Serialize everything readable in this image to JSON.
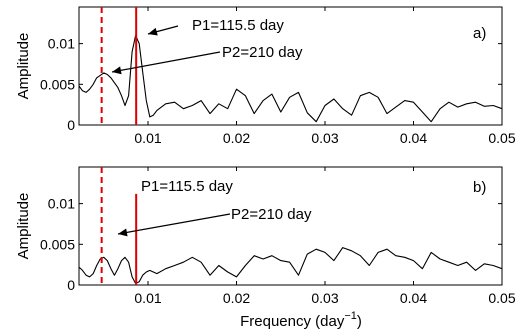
{
  "colors": {
    "curve": "#000000",
    "marker": "#e00000",
    "axis": "#000000"
  },
  "xlabel": "Frequency (day",
  "xlabel_sup": "−1",
  "xlabel_close": ")",
  "chart_data": [
    {
      "type": "line",
      "panel_label": "a)",
      "xlabel": "",
      "ylabel": "Amplitude",
      "xlim": [
        0.0022,
        0.05
      ],
      "ylim": [
        0,
        0.0145
      ],
      "x_ticks": [
        0.01,
        0.02,
        0.03,
        0.04,
        0.05
      ],
      "x_tick_labels": [
        "0.01",
        "0.02",
        "0.03",
        "0.04",
        "0.05"
      ],
      "y_ticks": [
        0,
        0.005,
        0.01
      ],
      "y_tick_labels": [
        "0",
        "0.005",
        "0.01"
      ],
      "markers": [
        {
          "label": "P1=115.5 day",
          "x": 0.00866,
          "style": "solid"
        },
        {
          "label": "P2=210 day",
          "x": 0.00476,
          "style": "dashed"
        }
      ],
      "series": [
        {
          "x": [
            0.0022,
            0.0026,
            0.003,
            0.0034,
            0.0038,
            0.0042,
            0.0046,
            0.005,
            0.0054,
            0.0058,
            0.0062,
            0.0066,
            0.007,
            0.0074,
            0.0078,
            0.0082,
            0.0086,
            0.009,
            0.0094,
            0.0098,
            0.0102,
            0.0106,
            0.011,
            0.012,
            0.013,
            0.014,
            0.015,
            0.016,
            0.017,
            0.018,
            0.019,
            0.02,
            0.021,
            0.022,
            0.023,
            0.024,
            0.025,
            0.026,
            0.027,
            0.028,
            0.029,
            0.03,
            0.031,
            0.032,
            0.033,
            0.034,
            0.035,
            0.036,
            0.037,
            0.038,
            0.039,
            0.04,
            0.041,
            0.042,
            0.043,
            0.044,
            0.045,
            0.046,
            0.047,
            0.048,
            0.049,
            0.05
          ],
          "y": [
            0.0048,
            0.0042,
            0.004,
            0.0044,
            0.005,
            0.0058,
            0.0061,
            0.0064,
            0.0062,
            0.0058,
            0.0052,
            0.0046,
            0.0036,
            0.0024,
            0.0036,
            0.009,
            0.011,
            0.01,
            0.0065,
            0.003,
            0.001,
            0.0012,
            0.0018,
            0.0026,
            0.0028,
            0.002,
            0.0024,
            0.003,
            0.0014,
            0.0026,
            0.002,
            0.0044,
            0.0036,
            0.0014,
            0.003,
            0.0038,
            0.0016,
            0.0034,
            0.004,
            0.0015,
            0.0004,
            0.0024,
            0.0032,
            0.002,
            0.0012,
            0.0036,
            0.004,
            0.0034,
            0.0014,
            0.0022,
            0.003,
            0.0028,
            0.0016,
            0.0004,
            0.002,
            0.0028,
            0.0022,
            0.0026,
            0.0028,
            0.0023,
            0.0024,
            0.002
          ]
        }
      ]
    },
    {
      "type": "line",
      "panel_label": "b)",
      "xlabel": "Frequency (day−1)",
      "ylabel": "Amplitude",
      "xlim": [
        0.0022,
        0.05
      ],
      "ylim": [
        0,
        0.0145
      ],
      "x_ticks": [
        0.01,
        0.02,
        0.03,
        0.04,
        0.05
      ],
      "x_tick_labels": [
        "0.01",
        "0.02",
        "0.03",
        "0.04",
        "0.05"
      ],
      "y_ticks": [
        0,
        0.005,
        0.01
      ],
      "y_tick_labels": [
        "0",
        "0.005",
        "0.01"
      ],
      "markers": [
        {
          "label": "P1=115.5 day",
          "x": 0.00866,
          "style": "solid"
        },
        {
          "label": "P2=210 day",
          "x": 0.00476,
          "style": "dashed"
        }
      ],
      "series": [
        {
          "x": [
            0.0022,
            0.0026,
            0.003,
            0.0034,
            0.0038,
            0.0042,
            0.0046,
            0.005,
            0.0054,
            0.0058,
            0.0062,
            0.0066,
            0.007,
            0.0074,
            0.0078,
            0.0082,
            0.0086,
            0.009,
            0.0094,
            0.0098,
            0.0102,
            0.0106,
            0.011,
            0.012,
            0.013,
            0.014,
            0.015,
            0.016,
            0.017,
            0.018,
            0.019,
            0.02,
            0.021,
            0.022,
            0.023,
            0.024,
            0.025,
            0.026,
            0.027,
            0.028,
            0.029,
            0.03,
            0.031,
            0.032,
            0.033,
            0.034,
            0.035,
            0.036,
            0.037,
            0.038,
            0.039,
            0.04,
            0.041,
            0.042,
            0.043,
            0.044,
            0.045,
            0.046,
            0.047,
            0.048,
            0.049,
            0.05
          ],
          "y": [
            0.0022,
            0.0018,
            0.0012,
            0.001,
            0.0014,
            0.0024,
            0.0032,
            0.0034,
            0.003,
            0.002,
            0.0012,
            0.002,
            0.003,
            0.0034,
            0.0028,
            0.001,
            0.0002,
            0.0004,
            0.0012,
            0.0016,
            0.0018,
            0.0016,
            0.0014,
            0.002,
            0.0024,
            0.0028,
            0.0034,
            0.0028,
            0.0012,
            0.0024,
            0.0016,
            0.001,
            0.0024,
            0.0036,
            0.0032,
            0.0036,
            0.003,
            0.0028,
            0.0012,
            0.0038,
            0.0044,
            0.004,
            0.003,
            0.0046,
            0.0042,
            0.0036,
            0.0024,
            0.004,
            0.0044,
            0.0036,
            0.0034,
            0.003,
            0.002,
            0.004,
            0.0032,
            0.0028,
            0.0024,
            0.0028,
            0.0018,
            0.0026,
            0.0024,
            0.002
          ]
        }
      ]
    }
  ]
}
